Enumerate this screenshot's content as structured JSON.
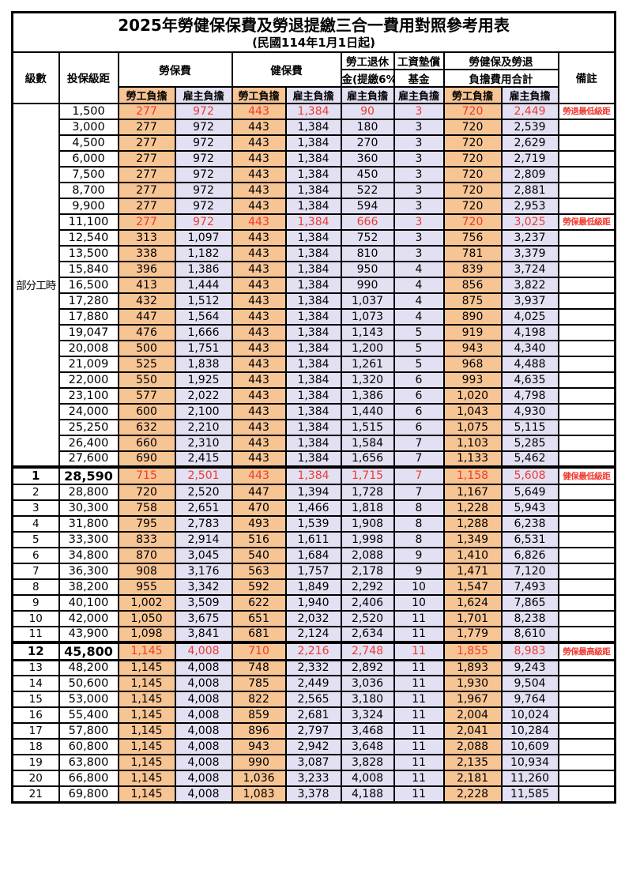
{
  "title": "2025年勞健保保費及勞退提繳三合一費用對照參考用表",
  "subtitle": "(民國114年1月1日起)",
  "colors": {
    "employee_column_bg": "#F7C494",
    "employer_column_bg": "#E2E0F2",
    "highlight_red": "#F03A30",
    "border": "#000000"
  },
  "header": {
    "level": "級數",
    "bracket": "投保級距",
    "labor_insurance": "勞保費",
    "health_insurance": "健保費",
    "pension_line1": "勞工退休",
    "pension_line2": "金(提繳6%)",
    "wage_fund_line1": "工資墊償",
    "wage_fund_line2": "基金",
    "total_line1": "勞健保及勞退",
    "total_line2": "負擔費用合計",
    "employee_burden": "勞工負擔",
    "employer_burden": "雇主負擔",
    "notes": "備註"
  },
  "part_time_label": "部分工時",
  "value_columns": [
    "labor_ins_employee",
    "labor_ins_employer",
    "health_ins_employee",
    "health_ins_employer",
    "pension_employer",
    "wage_fund_employer",
    "total_employee",
    "total_employer"
  ],
  "rows": [
    {
      "level": "",
      "bracket": "1,500",
      "values": [
        "277",
        "972",
        "443",
        "1,384",
        "90",
        "3",
        "720",
        "2,449"
      ],
      "note": "勞退最低級距",
      "red": true,
      "bold": false
    },
    {
      "level": "",
      "bracket": "3,000",
      "values": [
        "277",
        "972",
        "443",
        "1,384",
        "180",
        "3",
        "720",
        "2,539"
      ],
      "note": "",
      "red": false,
      "bold": false
    },
    {
      "level": "",
      "bracket": "4,500",
      "values": [
        "277",
        "972",
        "443",
        "1,384",
        "270",
        "3",
        "720",
        "2,629"
      ],
      "note": "",
      "red": false,
      "bold": false
    },
    {
      "level": "",
      "bracket": "6,000",
      "values": [
        "277",
        "972",
        "443",
        "1,384",
        "360",
        "3",
        "720",
        "2,719"
      ],
      "note": "",
      "red": false,
      "bold": false
    },
    {
      "level": "",
      "bracket": "7,500",
      "values": [
        "277",
        "972",
        "443",
        "1,384",
        "450",
        "3",
        "720",
        "2,809"
      ],
      "note": "",
      "red": false,
      "bold": false
    },
    {
      "level": "",
      "bracket": "8,700",
      "values": [
        "277",
        "972",
        "443",
        "1,384",
        "522",
        "3",
        "720",
        "2,881"
      ],
      "note": "",
      "red": false,
      "bold": false
    },
    {
      "level": "",
      "bracket": "9,900",
      "values": [
        "277",
        "972",
        "443",
        "1,384",
        "594",
        "3",
        "720",
        "2,953"
      ],
      "note": "",
      "red": false,
      "bold": false
    },
    {
      "level": "",
      "bracket": "11,100",
      "values": [
        "277",
        "972",
        "443",
        "1,384",
        "666",
        "3",
        "720",
        "3,025"
      ],
      "note": "勞保最低級距",
      "red": true,
      "bold": false
    },
    {
      "level": "",
      "bracket": "12,540",
      "values": [
        "313",
        "1,097",
        "443",
        "1,384",
        "752",
        "3",
        "756",
        "3,237"
      ],
      "note": "",
      "red": false,
      "bold": false
    },
    {
      "level": "",
      "bracket": "13,500",
      "values": [
        "338",
        "1,182",
        "443",
        "1,384",
        "810",
        "3",
        "781",
        "3,379"
      ],
      "note": "",
      "red": false,
      "bold": false
    },
    {
      "level": "",
      "bracket": "15,840",
      "values": [
        "396",
        "1,386",
        "443",
        "1,384",
        "950",
        "4",
        "839",
        "3,724"
      ],
      "note": "",
      "red": false,
      "bold": false
    },
    {
      "level": "",
      "bracket": "16,500",
      "values": [
        "413",
        "1,444",
        "443",
        "1,384",
        "990",
        "4",
        "856",
        "3,822"
      ],
      "note": "",
      "red": false,
      "bold": false
    },
    {
      "level": "",
      "bracket": "17,280",
      "values": [
        "432",
        "1,512",
        "443",
        "1,384",
        "1,037",
        "4",
        "875",
        "3,937"
      ],
      "note": "",
      "red": false,
      "bold": false
    },
    {
      "level": "",
      "bracket": "17,880",
      "values": [
        "447",
        "1,564",
        "443",
        "1,384",
        "1,073",
        "4",
        "890",
        "4,025"
      ],
      "note": "",
      "red": false,
      "bold": false
    },
    {
      "level": "",
      "bracket": "19,047",
      "values": [
        "476",
        "1,666",
        "443",
        "1,384",
        "1,143",
        "5",
        "919",
        "4,198"
      ],
      "note": "",
      "red": false,
      "bold": false
    },
    {
      "level": "",
      "bracket": "20,008",
      "values": [
        "500",
        "1,751",
        "443",
        "1,384",
        "1,200",
        "5",
        "943",
        "4,340"
      ],
      "note": "",
      "red": false,
      "bold": false
    },
    {
      "level": "",
      "bracket": "21,009",
      "values": [
        "525",
        "1,838",
        "443",
        "1,384",
        "1,261",
        "5",
        "968",
        "4,488"
      ],
      "note": "",
      "red": false,
      "bold": false
    },
    {
      "level": "",
      "bracket": "22,000",
      "values": [
        "550",
        "1,925",
        "443",
        "1,384",
        "1,320",
        "6",
        "993",
        "4,635"
      ],
      "note": "",
      "red": false,
      "bold": false
    },
    {
      "level": "",
      "bracket": "23,100",
      "values": [
        "577",
        "2,022",
        "443",
        "1,384",
        "1,386",
        "6",
        "1,020",
        "4,798"
      ],
      "note": "",
      "red": false,
      "bold": false
    },
    {
      "level": "",
      "bracket": "24,000",
      "values": [
        "600",
        "2,100",
        "443",
        "1,384",
        "1,440",
        "6",
        "1,043",
        "4,930"
      ],
      "note": "",
      "red": false,
      "bold": false
    },
    {
      "level": "",
      "bracket": "25,250",
      "values": [
        "632",
        "2,210",
        "443",
        "1,384",
        "1,515",
        "6",
        "1,075",
        "5,115"
      ],
      "note": "",
      "red": false,
      "bold": false
    },
    {
      "level": "",
      "bracket": "26,400",
      "values": [
        "660",
        "2,310",
        "443",
        "1,384",
        "1,584",
        "7",
        "1,103",
        "5,285"
      ],
      "note": "",
      "red": false,
      "bold": false
    },
    {
      "level": "",
      "bracket": "27,600",
      "values": [
        "690",
        "2,415",
        "443",
        "1,384",
        "1,656",
        "7",
        "1,133",
        "5,462"
      ],
      "note": "",
      "red": false,
      "bold": false
    },
    {
      "level": "1",
      "bracket": "28,590",
      "values": [
        "715",
        "2,501",
        "443",
        "1,384",
        "1,715",
        "7",
        "1,158",
        "5,608"
      ],
      "note": "健保最低級距",
      "red": true,
      "bold": true,
      "thick_top": true
    },
    {
      "level": "2",
      "bracket": "28,800",
      "values": [
        "720",
        "2,520",
        "447",
        "1,394",
        "1,728",
        "7",
        "1,167",
        "5,649"
      ],
      "note": "",
      "red": false,
      "bold": false
    },
    {
      "level": "3",
      "bracket": "30,300",
      "values": [
        "758",
        "2,651",
        "470",
        "1,466",
        "1,818",
        "8",
        "1,228",
        "5,943"
      ],
      "note": "",
      "red": false,
      "bold": false
    },
    {
      "level": "4",
      "bracket": "31,800",
      "values": [
        "795",
        "2,783",
        "493",
        "1,539",
        "1,908",
        "8",
        "1,288",
        "6,238"
      ],
      "note": "",
      "red": false,
      "bold": false
    },
    {
      "level": "5",
      "bracket": "33,300",
      "values": [
        "833",
        "2,914",
        "516",
        "1,611",
        "1,998",
        "8",
        "1,349",
        "6,531"
      ],
      "note": "",
      "red": false,
      "bold": false
    },
    {
      "level": "6",
      "bracket": "34,800",
      "values": [
        "870",
        "3,045",
        "540",
        "1,684",
        "2,088",
        "9",
        "1,410",
        "6,826"
      ],
      "note": "",
      "red": false,
      "bold": false
    },
    {
      "level": "7",
      "bracket": "36,300",
      "values": [
        "908",
        "3,176",
        "563",
        "1,757",
        "2,178",
        "9",
        "1,471",
        "7,120"
      ],
      "note": "",
      "red": false,
      "bold": false
    },
    {
      "level": "8",
      "bracket": "38,200",
      "values": [
        "955",
        "3,342",
        "592",
        "1,849",
        "2,292",
        "10",
        "1,547",
        "7,493"
      ],
      "note": "",
      "red": false,
      "bold": false
    },
    {
      "level": "9",
      "bracket": "40,100",
      "values": [
        "1,002",
        "3,509",
        "622",
        "1,940",
        "2,406",
        "10",
        "1,624",
        "7,865"
      ],
      "note": "",
      "red": false,
      "bold": false
    },
    {
      "level": "10",
      "bracket": "42,000",
      "values": [
        "1,050",
        "3,675",
        "651",
        "2,032",
        "2,520",
        "11",
        "1,701",
        "8,238"
      ],
      "note": "",
      "red": false,
      "bold": false
    },
    {
      "level": "11",
      "bracket": "43,900",
      "values": [
        "1,098",
        "3,841",
        "681",
        "2,124",
        "2,634",
        "11",
        "1,779",
        "8,610"
      ],
      "note": "",
      "red": false,
      "bold": false
    },
    {
      "level": "12",
      "bracket": "45,800",
      "values": [
        "1,145",
        "4,008",
        "710",
        "2,216",
        "2,748",
        "11",
        "1,855",
        "8,983"
      ],
      "note": "勞保最高級距",
      "red": true,
      "bold": true,
      "thick_top": true,
      "thick_bottom": true
    },
    {
      "level": "13",
      "bracket": "48,200",
      "values": [
        "1,145",
        "4,008",
        "748",
        "2,332",
        "2,892",
        "11",
        "1,893",
        "9,243"
      ],
      "note": "",
      "red": false,
      "bold": false
    },
    {
      "level": "14",
      "bracket": "50,600",
      "values": [
        "1,145",
        "4,008",
        "785",
        "2,449",
        "3,036",
        "11",
        "1,930",
        "9,504"
      ],
      "note": "",
      "red": false,
      "bold": false
    },
    {
      "level": "15",
      "bracket": "53,000",
      "values": [
        "1,145",
        "4,008",
        "822",
        "2,565",
        "3,180",
        "11",
        "1,967",
        "9,764"
      ],
      "note": "",
      "red": false,
      "bold": false
    },
    {
      "level": "16",
      "bracket": "55,400",
      "values": [
        "1,145",
        "4,008",
        "859",
        "2,681",
        "3,324",
        "11",
        "2,004",
        "10,024"
      ],
      "note": "",
      "red": false,
      "bold": false
    },
    {
      "level": "17",
      "bracket": "57,800",
      "values": [
        "1,145",
        "4,008",
        "896",
        "2,797",
        "3,468",
        "11",
        "2,041",
        "10,284"
      ],
      "note": "",
      "red": false,
      "bold": false
    },
    {
      "level": "18",
      "bracket": "60,800",
      "values": [
        "1,145",
        "4,008",
        "943",
        "2,942",
        "3,648",
        "11",
        "2,088",
        "10,609"
      ],
      "note": "",
      "red": false,
      "bold": false
    },
    {
      "level": "19",
      "bracket": "63,800",
      "values": [
        "1,145",
        "4,008",
        "990",
        "3,087",
        "3,828",
        "11",
        "2,135",
        "10,934"
      ],
      "note": "",
      "red": false,
      "bold": false
    },
    {
      "level": "20",
      "bracket": "66,800",
      "values": [
        "1,145",
        "4,008",
        "1,036",
        "3,233",
        "4,008",
        "11",
        "2,181",
        "11,260"
      ],
      "note": "",
      "red": false,
      "bold": false
    },
    {
      "level": "21",
      "bracket": "69,800",
      "values": [
        "1,145",
        "4,008",
        "1,083",
        "3,378",
        "4,188",
        "11",
        "2,228",
        "11,585"
      ],
      "note": "",
      "red": false,
      "bold": false
    }
  ]
}
